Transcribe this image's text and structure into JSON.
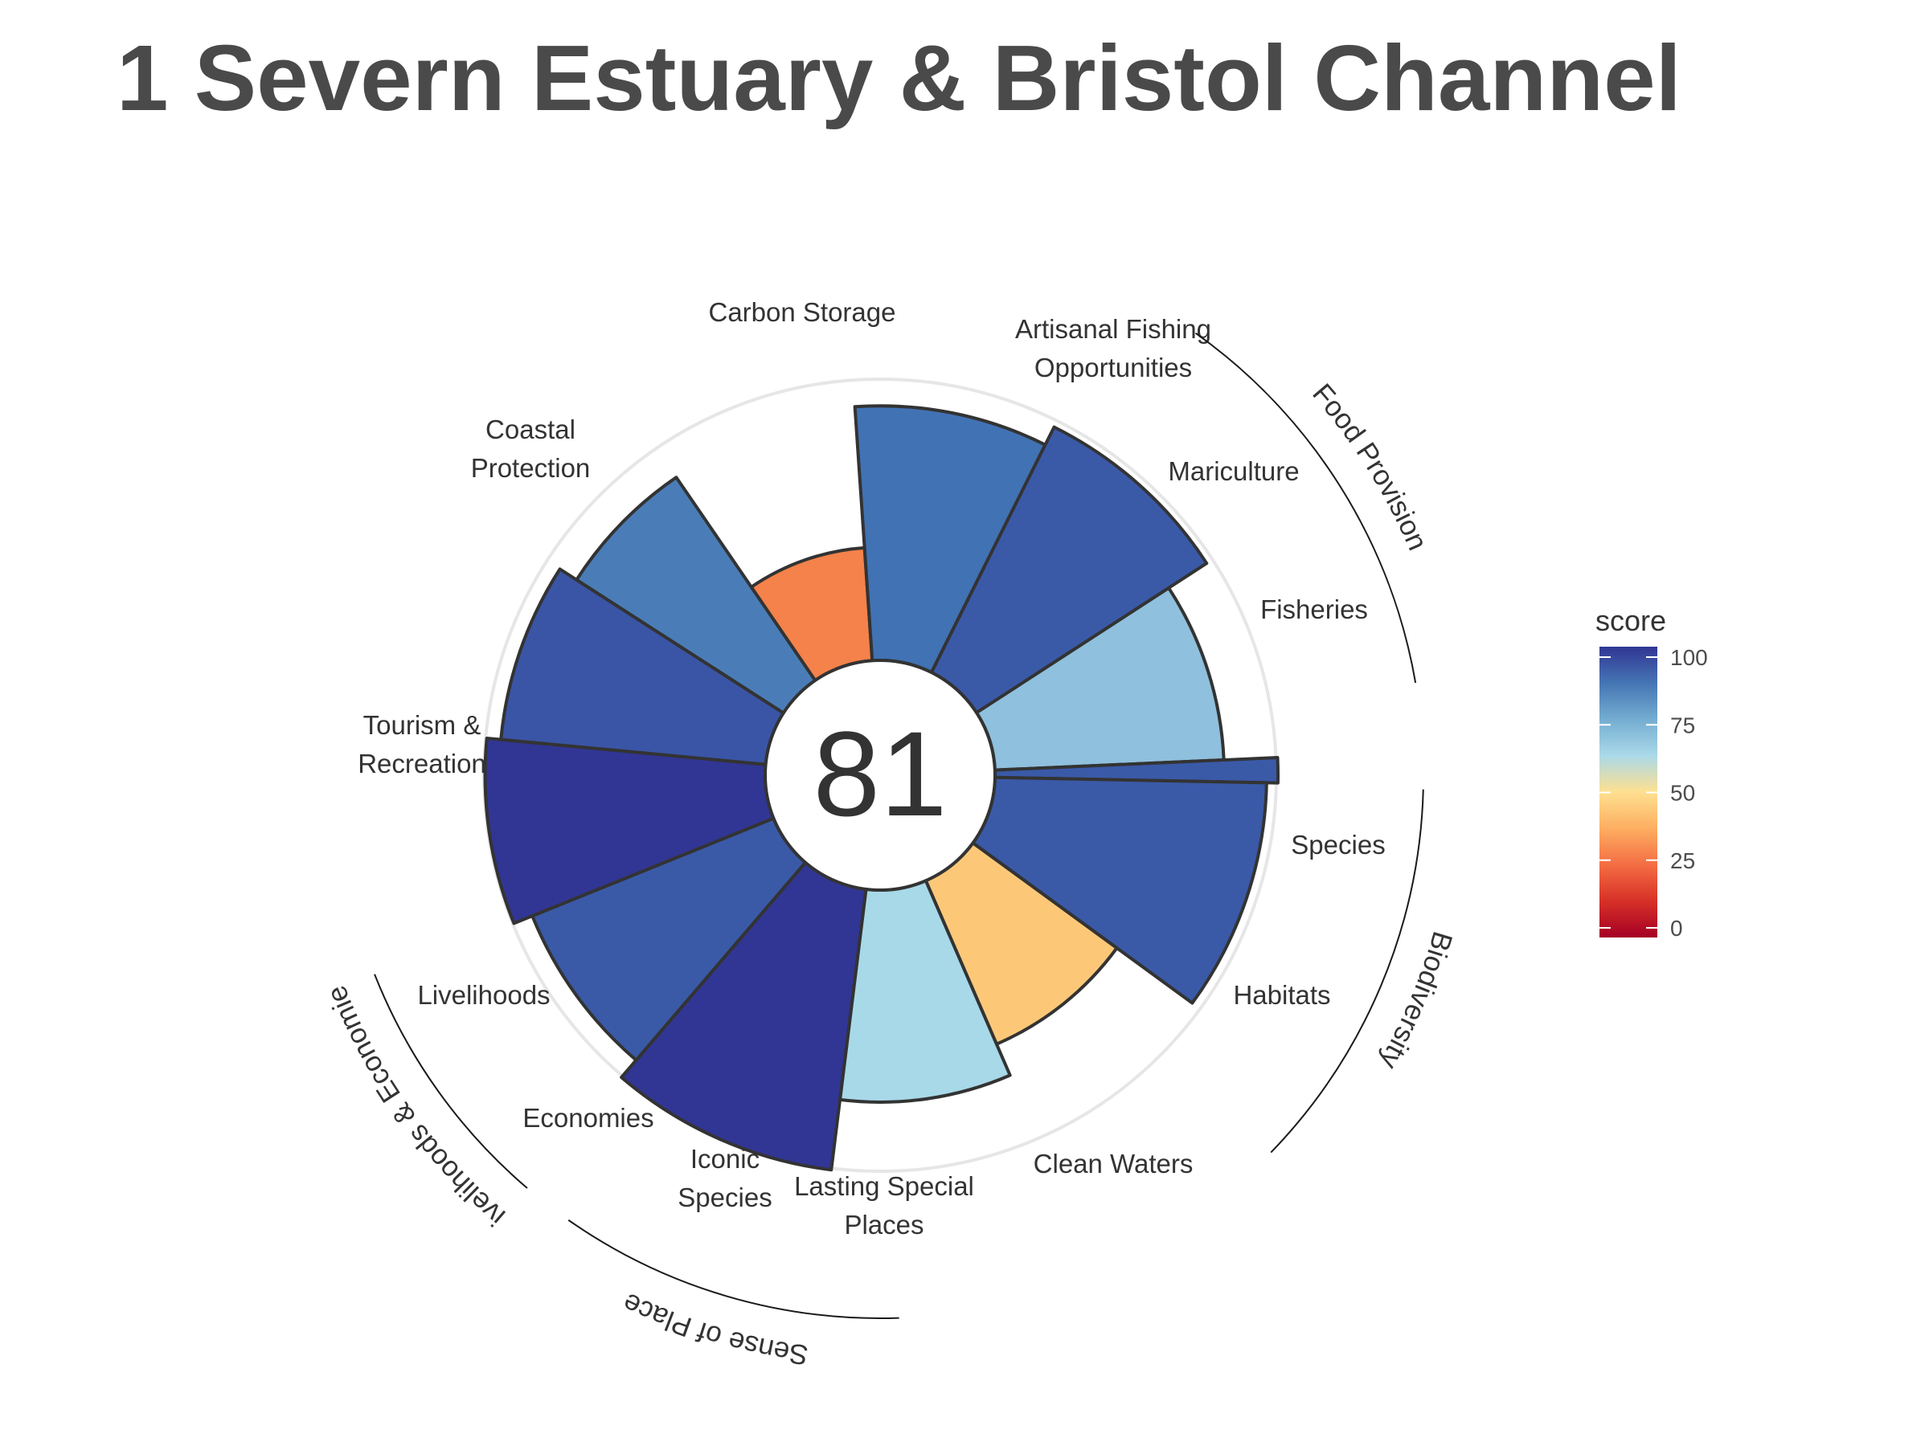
{
  "chart_data": {
    "type": "polar-bar",
    "title": "1 Severn Estuary & Bristol Channel",
    "overall_score": "81",
    "ylim": [
      0,
      100
    ],
    "goals": [
      {
        "name": "Fisheries",
        "label_lines": [
          "Fisheries"
        ],
        "score": 81,
        "color": "#8fc0dd"
      },
      {
        "name": "Mariculture",
        "label_lines": [
          "Mariculture"
        ],
        "score": 100,
        "color": "#3a5aa8"
      },
      {
        "name": "Artisanal Fishing Opportunities",
        "label_lines": [
          "Artisanal Fishing",
          "Opportunities"
        ],
        "score": 96,
        "color": "#3a5aa8"
      },
      {
        "name": "Carbon Storage",
        "label_lines": [
          "Carbon Storage"
        ],
        "score": 63,
        "color": "#fcc878"
      },
      {
        "name": "Coastal Protection",
        "label_lines": [
          "Coastal",
          "Protection"
        ],
        "score": 75,
        "color": "#a8d9e8"
      },
      {
        "name": "Tourism & Recreation",
        "label_lines": [
          "Tourism &",
          "Recreation"
        ],
        "score": 100,
        "color": "#313694"
      },
      {
        "name": "Livelihoods",
        "label_lines": [
          "Livelihoods"
        ],
        "score": 92,
        "color": "#3a5aa8"
      },
      {
        "name": "Economies",
        "label_lines": [
          "Economies"
        ],
        "score": 99,
        "color": "#313694"
      },
      {
        "name": "Iconic Species",
        "label_lines": [
          "Iconic",
          "Species"
        ],
        "score": 94,
        "color": "#3a55a5"
      },
      {
        "name": "Lasting Special Places",
        "label_lines": [
          "Lasting Special",
          "Places"
        ],
        "score": 87,
        "color": "#4a7db8"
      },
      {
        "name": "Clean Waters",
        "label_lines": [
          "Clean Waters"
        ],
        "score": 40,
        "color": "#f4824a"
      },
      {
        "name": "Habitats",
        "label_lines": [
          "Habitats"
        ],
        "score": 90,
        "color": "#4172b4"
      },
      {
        "name": "Species",
        "label_lines": [
          "Species"
        ],
        "score": 97,
        "color": "#3a5aa8"
      }
    ],
    "groups": [
      "Food Provision",
      "Biodiversity",
      "Sense of Place",
      "Livelihoods & Economies"
    ],
    "legend": {
      "title": "score",
      "ticks": [
        "100",
        "75",
        "50",
        "25",
        "0"
      ],
      "gradient": [
        "#313694",
        "#4575b4",
        "#74add1",
        "#abd9e9",
        "#fee090",
        "#fdae61",
        "#f46d43",
        "#d73027",
        "#a50026"
      ]
    }
  }
}
